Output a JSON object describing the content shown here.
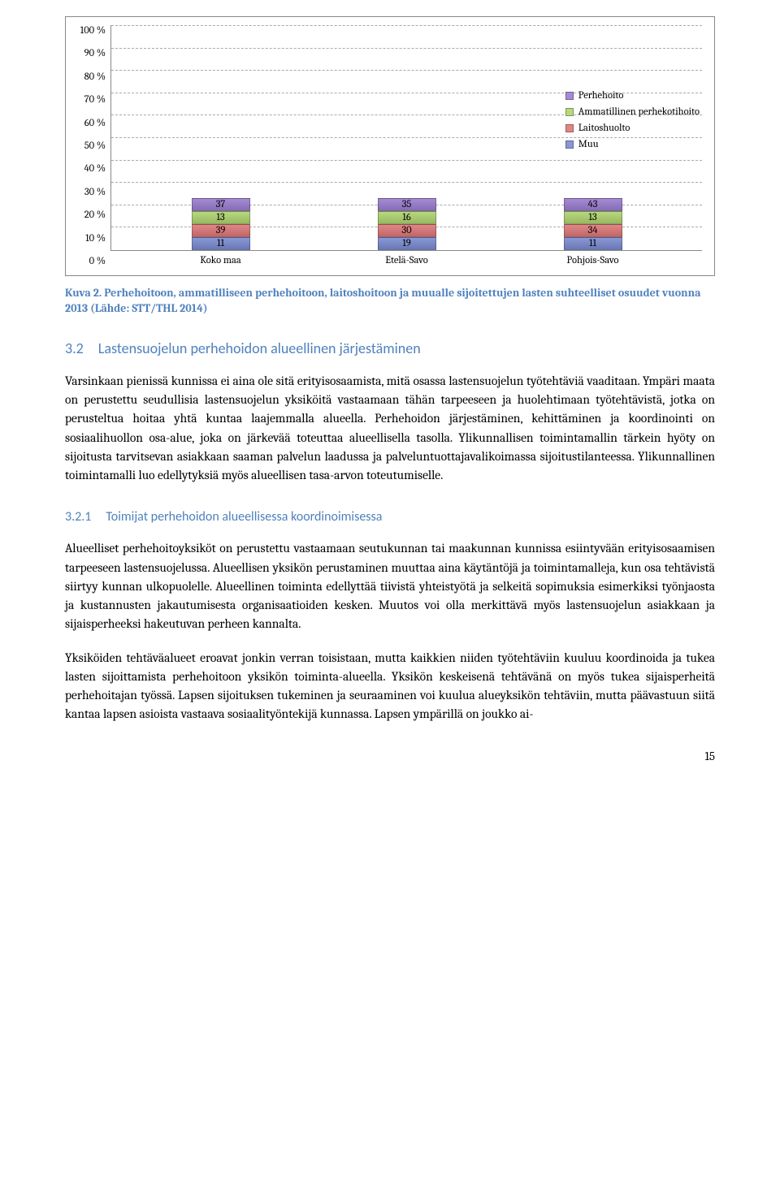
{
  "chart": {
    "type": "stacked-bar",
    "y_ticks": [
      "100 %",
      "90 %",
      "80 %",
      "70 %",
      "60 %",
      "50 %",
      "40 %",
      "30 %",
      "20 %",
      "10 %",
      "0 %"
    ],
    "categories": [
      "Koko maa",
      "Etelä-Savo",
      "Pohjois-Savo"
    ],
    "series": [
      {
        "name": "Muu",
        "color": "#8998d4",
        "label": "Muu"
      },
      {
        "name": "Laitoshuolto",
        "color": "#e08686",
        "label": "Laitoshuolto"
      },
      {
        "name": "Ammatillinen",
        "color": "#b7d87f",
        "label": "Ammatillinen perhekotihoito"
      },
      {
        "name": "Perhehoito",
        "color": "#a58bd3",
        "label": "Perhehoito"
      }
    ],
    "data": [
      {
        "cat": "Koko maa",
        "Muu": 11,
        "Laitoshuolto": 39,
        "Ammatillinen": 13,
        "Perhehoito": 37
      },
      {
        "cat": "Etelä-Savo",
        "Muu": 19,
        "Laitoshuolto": 30,
        "Ammatillinen": 16,
        "Perhehoito": 35
      },
      {
        "cat": "Pohjois-Savo",
        "Muu": 11,
        "Laitoshuolto": 34,
        "Ammatillinen": 13,
        "Perhehoito": 43
      }
    ],
    "grid_color": "#aaaaaa",
    "background_color": "#ffffff"
  },
  "caption": {
    "label": "Kuva 2.",
    "text": "Perhehoitoon, ammatilliseen perhehoitoon, laitoshoitoon ja muualle sijoitettujen lasten suhteelliset osuudet vuonna 2013 (Lähde: STT/THL 2014)"
  },
  "section32": {
    "number": "3.2",
    "title": "Lastensuojelun perhehoidon alueellinen järjestäminen"
  },
  "para1": "Varsinkaan pienissä kunnissa ei aina ole sitä erityisosaamista, mitä osassa lastensuojelun työtehtäviä vaaditaan. Ympäri maata on perustettu seudullisia lastensuojelun yksiköitä vastaamaan tähän tarpeeseen ja huolehtimaan työtehtävistä, jotka on perusteltua hoitaa yhtä kuntaa laajemmalla alueella. Perhehoidon järjestäminen, kehittäminen ja koordinointi on sosiaalihuollon osa-alue, joka on järkevää toteuttaa alueellisella tasolla. Ylikunnallisen toimintamallin tärkein hyöty on sijoitusta tarvitsevan asiakkaan saaman palvelun laadussa ja palveluntuottajavalikoimassa sijoitustilanteessa. Ylikunnallinen toimintamalli luo edellytyksiä myös alueellisen tasa-arvon toteutumiselle.",
  "section321": {
    "number": "3.2.1",
    "title": "Toimijat perhehoidon alueellisessa koordinoimisessa"
  },
  "para2": "Alueelliset perhehoitoyksiköt on perustettu vastaamaan seutukunnan tai maakunnan kunnissa esiintyvään erityisosaamisen tarpeeseen lastensuojelussa. Alueellisen yksikön perustaminen muuttaa aina käytäntöjä ja toimintamalleja, kun osa tehtävistä siirtyy kunnan ulkopuolelle. Alueellinen toiminta edellyttää tiivistä yhteistyötä ja selkeitä sopimuksia esimerkiksi työnjaosta ja kustannusten jakautumisesta organisaatioiden kesken. Muutos voi olla merkittävä myös lastensuojelun asiakkaan ja sijaisperheeksi hakeutuvan perheen kannalta.",
  "para3": "Yksiköiden tehtäväalueet eroavat jonkin verran toisistaan, mutta kaikkien niiden työtehtäviin kuuluu koordinoida ja tukea lasten sijoittamista perhehoitoon yksikön toiminta-alueella. Yksikön keskeisenä tehtävänä on myös tukea sijaisperheitä perhehoitajan työssä. Lapsen sijoituksen tukeminen ja seuraaminen voi kuulua alueyksikön tehtäviin, mutta päävastuun siitä kantaa lapsen asioista vastaava sosiaalityöntekijä kunnassa. Lapsen ympärillä on joukko ai-",
  "page_number": "15"
}
